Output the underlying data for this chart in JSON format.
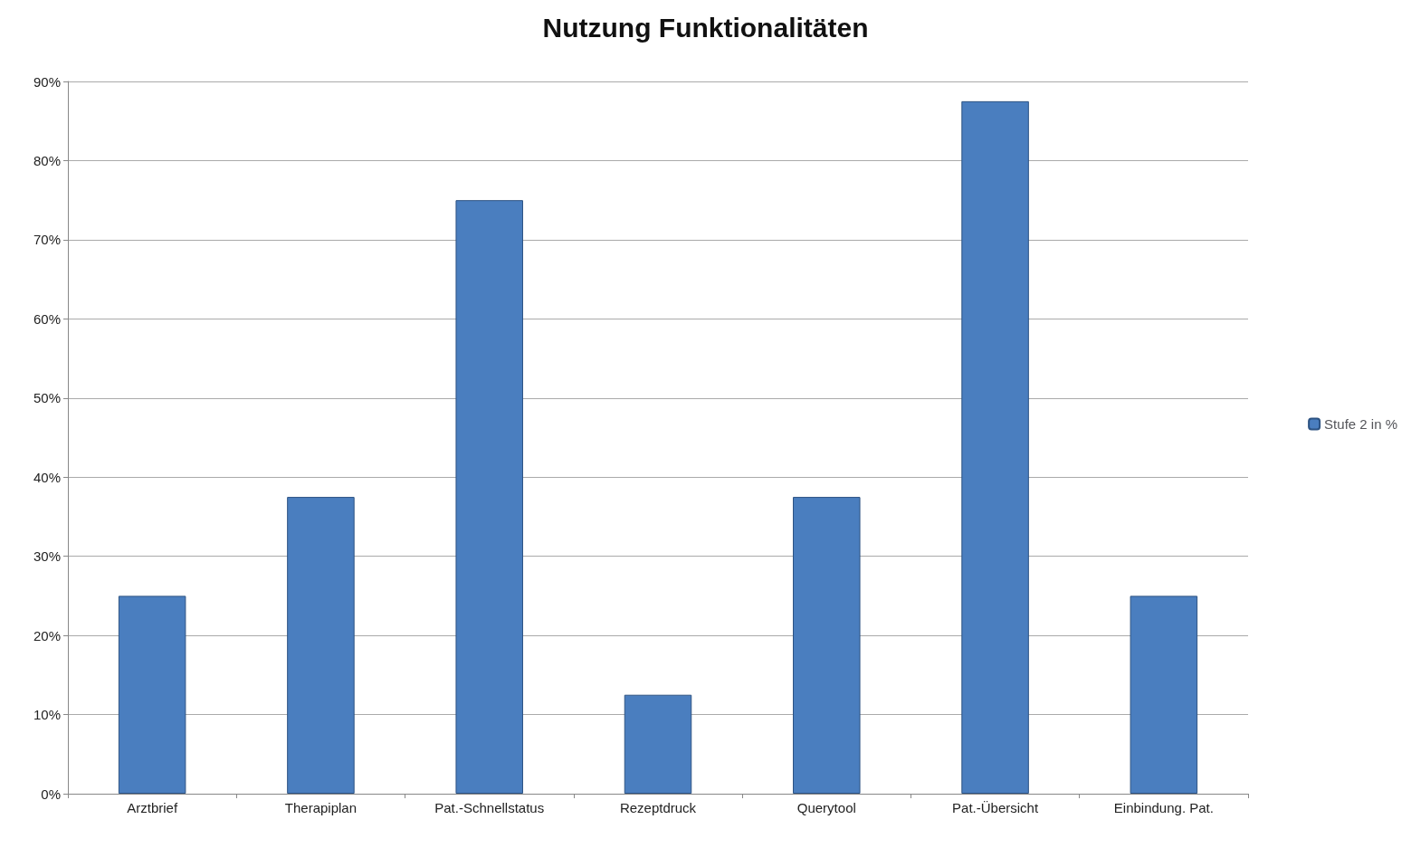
{
  "chart_data": {
    "type": "bar",
    "title": "Nutzung Funktionalitäten",
    "categories": [
      "Arztbrief",
      "Therapiplan",
      "Pat.-Schnellstatus",
      "Rezeptdruck",
      "Querytool",
      "Pat.-Übersicht",
      "Einbindung. Pat."
    ],
    "series": [
      {
        "name": "Stufe 2 in %",
        "color": "#4a7ebf",
        "values": [
          25,
          37.5,
          75,
          12.5,
          37.5,
          87.5,
          25
        ]
      }
    ],
    "ylim": [
      0,
      90
    ],
    "yticks": [
      {
        "value": 0,
        "label": "0%"
      },
      {
        "value": 10,
        "label": "10%"
      },
      {
        "value": 20,
        "label": "20%"
      },
      {
        "value": 30,
        "label": "30%"
      },
      {
        "value": 40,
        "label": "40%"
      },
      {
        "value": 50,
        "label": "50%"
      },
      {
        "value": 60,
        "label": "60%"
      },
      {
        "value": 70,
        "label": "70%"
      },
      {
        "value": 80,
        "label": "80%"
      },
      {
        "value": 90,
        "label": "90%"
      }
    ],
    "grid": "y",
    "legend": "right"
  }
}
